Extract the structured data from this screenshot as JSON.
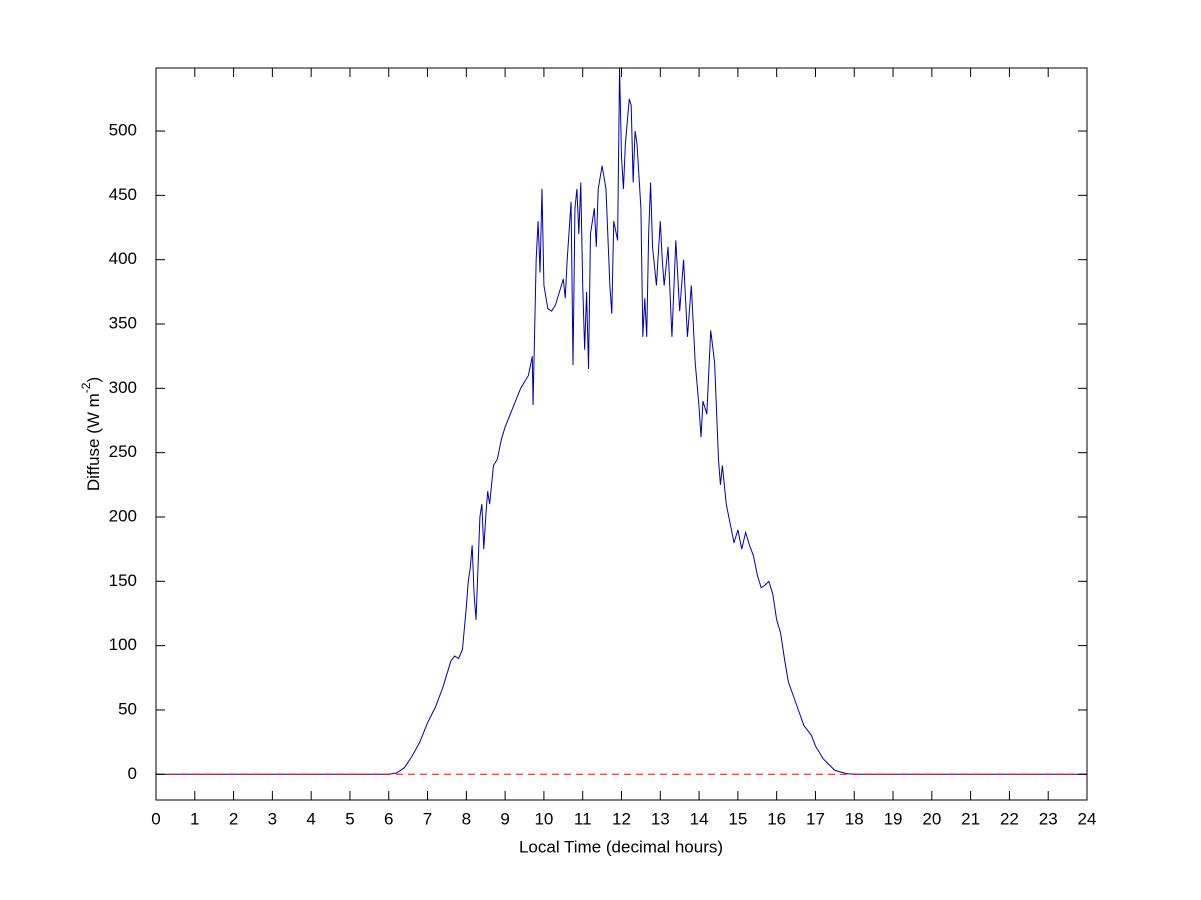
{
  "chart_data": {
    "type": "line",
    "xlabel": "Local Time (decimal hours)",
    "ylabel_parts": [
      "Diffuse (W m",
      "-2",
      ")"
    ],
    "xlim": [
      0,
      24
    ],
    "ylim": [
      -20,
      549
    ],
    "xticks": [
      0,
      1,
      2,
      3,
      4,
      5,
      6,
      7,
      8,
      9,
      10,
      11,
      12,
      13,
      14,
      15,
      16,
      17,
      18,
      19,
      20,
      21,
      22,
      23,
      24
    ],
    "yticks": [
      0,
      50,
      100,
      150,
      200,
      250,
      300,
      350,
      400,
      450,
      500
    ],
    "grid": false,
    "series": [
      {
        "color": "#0000aa",
        "dash": false,
        "x": [
          0,
          6.0,
          6.2,
          6.4,
          6.6,
          6.8,
          7.0,
          7.2,
          7.4,
          7.6,
          7.7,
          7.8,
          7.9,
          8.0,
          8.05,
          8.1,
          8.15,
          8.2,
          8.25,
          8.3,
          8.35,
          8.4,
          8.45,
          8.5,
          8.55,
          8.6,
          8.65,
          8.7,
          8.8,
          8.9,
          9.0,
          9.2,
          9.4,
          9.6,
          9.7,
          9.72,
          9.8,
          9.85,
          9.9,
          9.95,
          10.0,
          10.1,
          10.2,
          10.3,
          10.4,
          10.5,
          10.55,
          10.6,
          10.7,
          10.75,
          10.8,
          10.85,
          10.9,
          10.95,
          11.0,
          11.05,
          11.1,
          11.15,
          11.2,
          11.3,
          11.35,
          11.4,
          11.5,
          11.6,
          11.7,
          11.75,
          11.8,
          11.9,
          11.95,
          12.0,
          12.05,
          12.1,
          12.2,
          12.25,
          12.3,
          12.35,
          12.4,
          12.5,
          12.55,
          12.6,
          12.65,
          12.7,
          12.75,
          12.8,
          12.9,
          13.0,
          13.05,
          13.1,
          13.2,
          13.3,
          13.4,
          13.5,
          13.6,
          13.7,
          13.8,
          13.9,
          14.0,
          14.05,
          14.1,
          14.2,
          14.3,
          14.4,
          14.5,
          14.55,
          14.6,
          14.7,
          14.8,
          14.9,
          15.0,
          15.1,
          15.2,
          15.3,
          15.4,
          15.5,
          15.6,
          15.7,
          15.8,
          15.9,
          16.0,
          16.1,
          16.2,
          16.3,
          16.5,
          16.7,
          16.9,
          17.0,
          17.2,
          17.5,
          17.8,
          18.0,
          24
        ],
        "values": [
          0,
          0,
          1,
          5,
          14,
          25,
          40,
          52,
          68,
          88,
          92,
          90,
          97,
          130,
          150,
          160,
          178,
          140,
          120,
          160,
          200,
          210,
          175,
          200,
          220,
          210,
          225,
          240,
          245,
          260,
          270,
          285,
          300,
          310,
          325,
          287,
          400,
          430,
          390,
          455,
          380,
          362,
          360,
          365,
          375,
          385,
          370,
          400,
          445,
          318,
          440,
          455,
          420,
          460,
          380,
          330,
          375,
          315,
          420,
          440,
          410,
          455,
          473,
          455,
          380,
          358,
          430,
          415,
          549,
          480,
          455,
          490,
          525,
          520,
          460,
          500,
          490,
          440,
          340,
          370,
          340,
          420,
          460,
          410,
          380,
          430,
          400,
          380,
          410,
          340,
          415,
          360,
          400,
          340,
          380,
          320,
          285,
          262,
          290,
          280,
          345,
          320,
          245,
          225,
          240,
          210,
          195,
          180,
          190,
          175,
          188,
          178,
          170,
          155,
          145,
          147,
          150,
          140,
          120,
          110,
          90,
          72,
          55,
          38,
          30,
          22,
          12,
          3,
          0.5,
          0,
          0
        ]
      },
      {
        "color": "#ff0000",
        "dash": true,
        "x": [
          0,
          24
        ],
        "values": [
          0,
          0
        ]
      }
    ]
  }
}
